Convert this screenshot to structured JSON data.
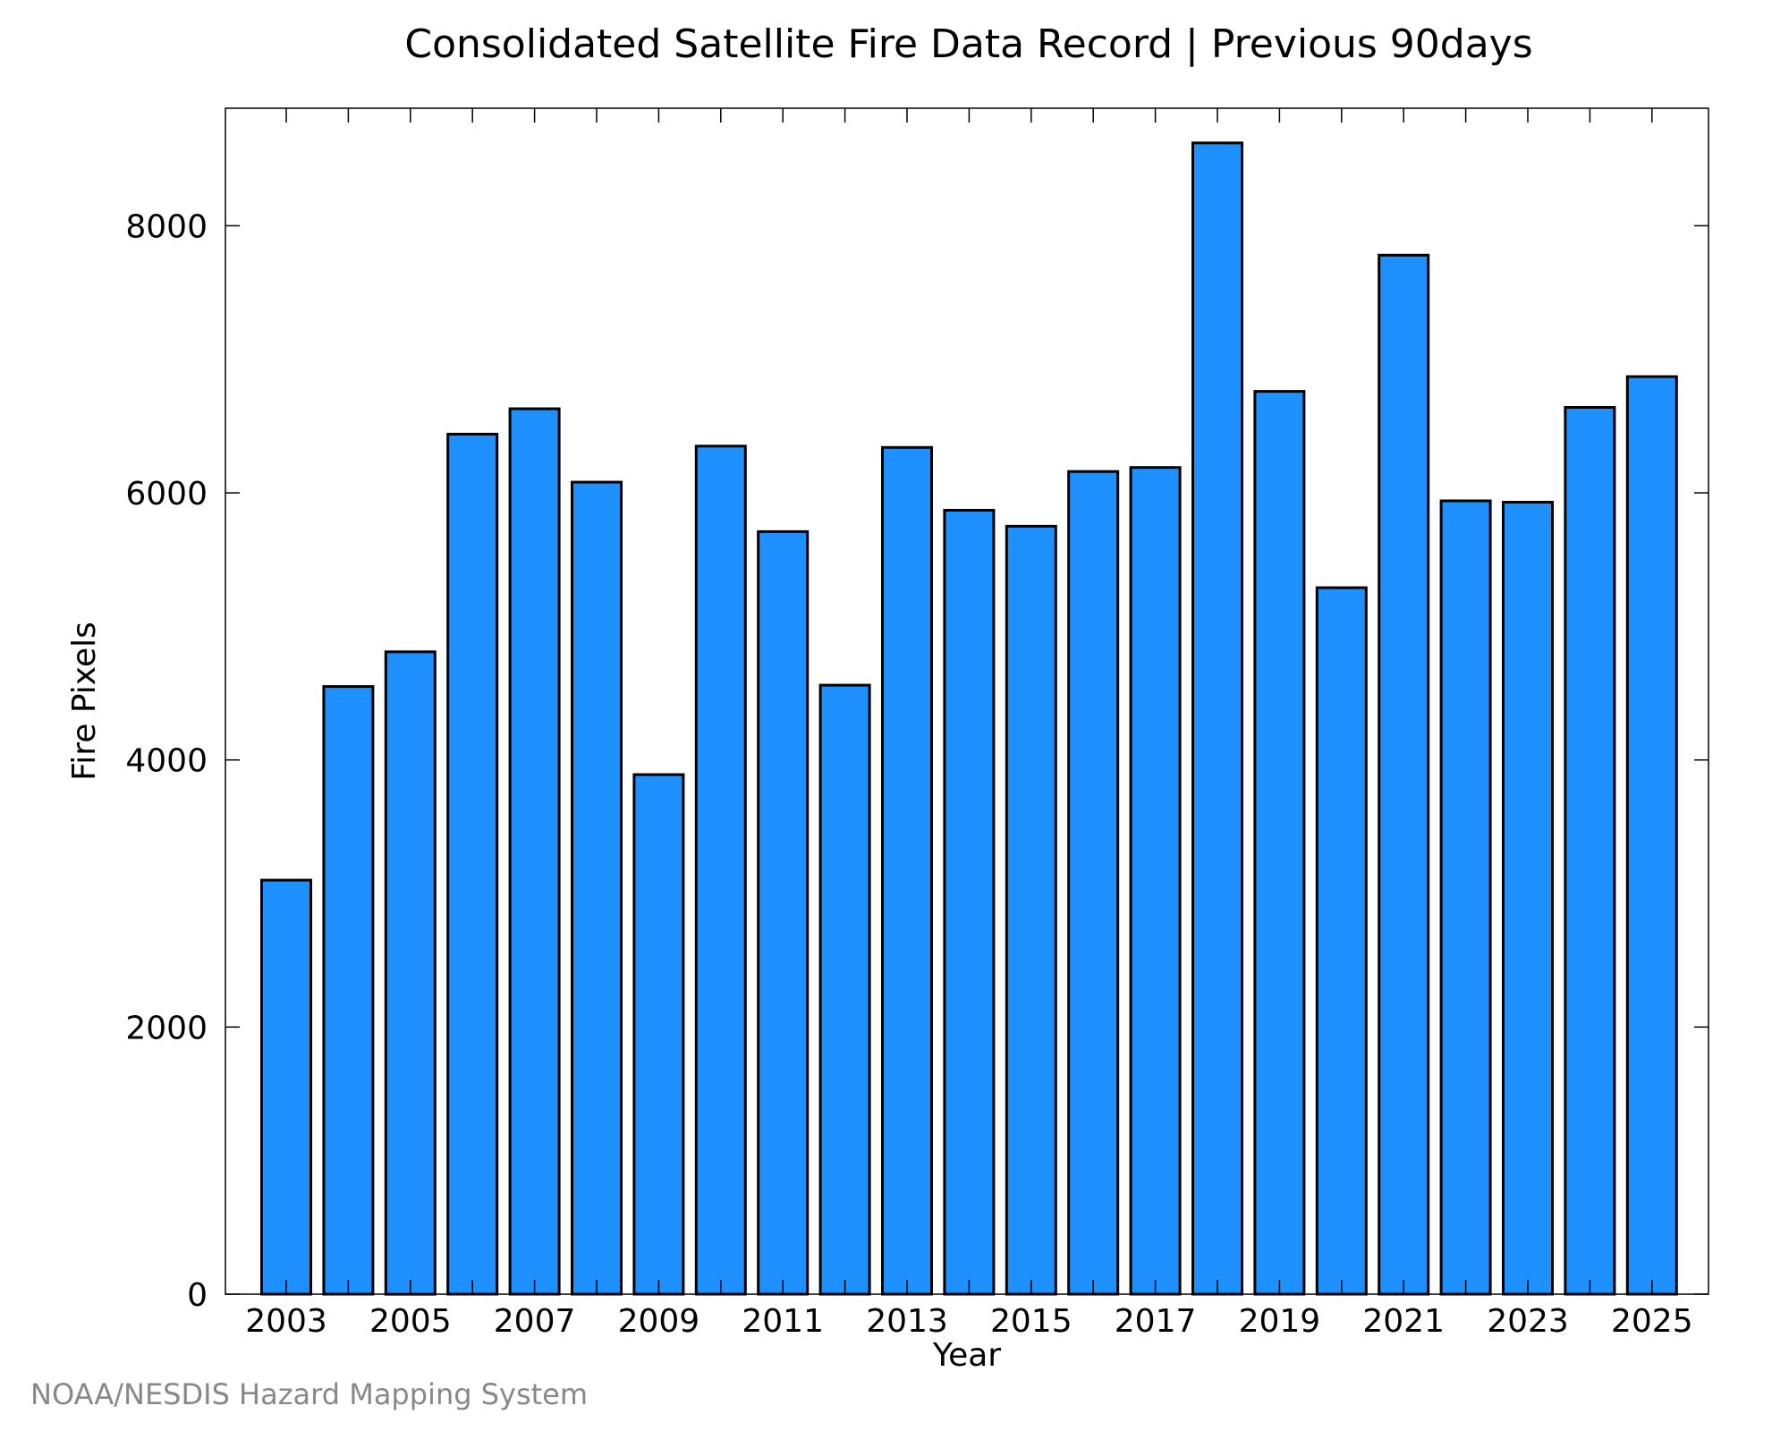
{
  "colors": {
    "bar_fill": "#1e90ff",
    "bar_stroke": "#000000",
    "credit_text": "#888888"
  },
  "credit": "NOAA/NESDIS Hazard Mapping System",
  "chart_data": {
    "type": "bar",
    "title": "Consolidated Satellite Fire Data Record | Previous 90days",
    "xlabel": "Year",
    "ylabel": "Fire Pixels",
    "categories": [
      "2003",
      "2004",
      "2005",
      "2006",
      "2007",
      "2008",
      "2009",
      "2010",
      "2011",
      "2012",
      "2013",
      "2014",
      "2015",
      "2016",
      "2017",
      "2018",
      "2019",
      "2020",
      "2021",
      "2022",
      "2023",
      "2024",
      "2025"
    ],
    "values": [
      3100,
      4550,
      4810,
      6440,
      6630,
      6080,
      3890,
      6350,
      5710,
      4560,
      6340,
      5870,
      5750,
      6160,
      6190,
      8620,
      6760,
      5290,
      7780,
      5940,
      5930,
      6640,
      6870
    ],
    "x_tick_labels": [
      "2003",
      "2005",
      "2007",
      "2009",
      "2011",
      "2013",
      "2015",
      "2017",
      "2019",
      "2021",
      "2023",
      "2025"
    ],
    "y_ticks": [
      0,
      2000,
      4000,
      6000,
      8000
    ],
    "ylim": [
      0,
      8880
    ],
    "grid": false,
    "legend": "none"
  }
}
